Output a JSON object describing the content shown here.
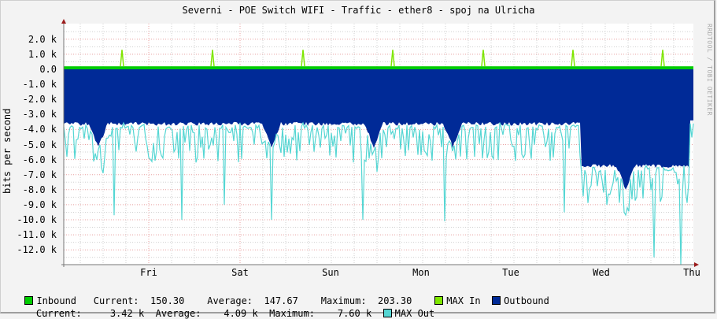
{
  "title": "Severni - POE Switch WIFI - Traffic - ether8 - spoj na Ulricha",
  "watermark": "RRDTOOL / TOBI OETIKER",
  "chart_data": {
    "type": "area",
    "title": "Severni - POE Switch WIFI - Traffic - ether8 - spoj na Ulricha",
    "xlabel": "",
    "ylabel": "bits per second",
    "ylim": [
      -13000,
      2600
    ],
    "y_ticks": [
      "2.0 k",
      "1.0 k",
      "0.0",
      "-1.0 k",
      "-2.0 k",
      "-3.0 k",
      "-4.0 k",
      "-5.0 k",
      "-6.0 k",
      "-7.0 k",
      "-8.0 k",
      "-9.0 k",
      "-10.0 k",
      "-11.0 k",
      "-12.0 k"
    ],
    "x_ticks": [
      "Fri",
      "Sat",
      "Sun",
      "Mon",
      "Tue",
      "Wed",
      "Thu"
    ],
    "grid": true,
    "legend_position": "bottom",
    "series": [
      {
        "name": "Inbound",
        "color": "#00cc00",
        "kind": "area",
        "typical": 150,
        "current": 150.3,
        "average": 147.67,
        "maximum": 203.3
      },
      {
        "name": "MAX In",
        "color": "#7ee600",
        "kind": "line",
        "spikes_at_days": [
          "Thu",
          "Fri",
          "Sat",
          "Sun",
          "Mon",
          "Tue",
          "Wed"
        ],
        "spike_value": 1300
      },
      {
        "name": "Outbound",
        "color": "#002a97",
        "kind": "area (negative)",
        "current": 3420,
        "average": 4090,
        "maximum": 7600,
        "segments": [
          {
            "from": "start",
            "to": "Tue late",
            "typical": -3500,
            "dips_to": -5000
          },
          {
            "from": "Tue late",
            "to": "Thu",
            "typical": -6200,
            "dips_to": -7400
          }
        ]
      },
      {
        "name": "MAX Out",
        "color": "#55d6d3",
        "kind": "line (negative)",
        "typical_range": [
          -3500,
          -6000
        ],
        "min_spikes": [
          -9600,
          -10000,
          -9500,
          -9000,
          -12300,
          -13000
        ]
      }
    ]
  },
  "legend": {
    "row1": {
      "inbound_label": "Inbound",
      "current_label": "Current:",
      "current_value": "150.30",
      "average_label": "Average:",
      "average_value": "147.67",
      "maximum_label": "Maximum:",
      "maximum_value": "203.30",
      "max_in_label": "MAX In",
      "outbound_label": "Outbound"
    },
    "row2": {
      "current_label": "Current:",
      "current_value": "3.42 k",
      "average_label": "Average:",
      "average_value": "4.09 k",
      "maximum_label": "Maximum:",
      "maximum_value": "7.60 k",
      "max_out_label": "MAX Out"
    },
    "colors": {
      "inbound": "#00cc00",
      "max_in": "#7ee600",
      "outbound": "#002a97",
      "max_out": "#55d6d3"
    }
  }
}
